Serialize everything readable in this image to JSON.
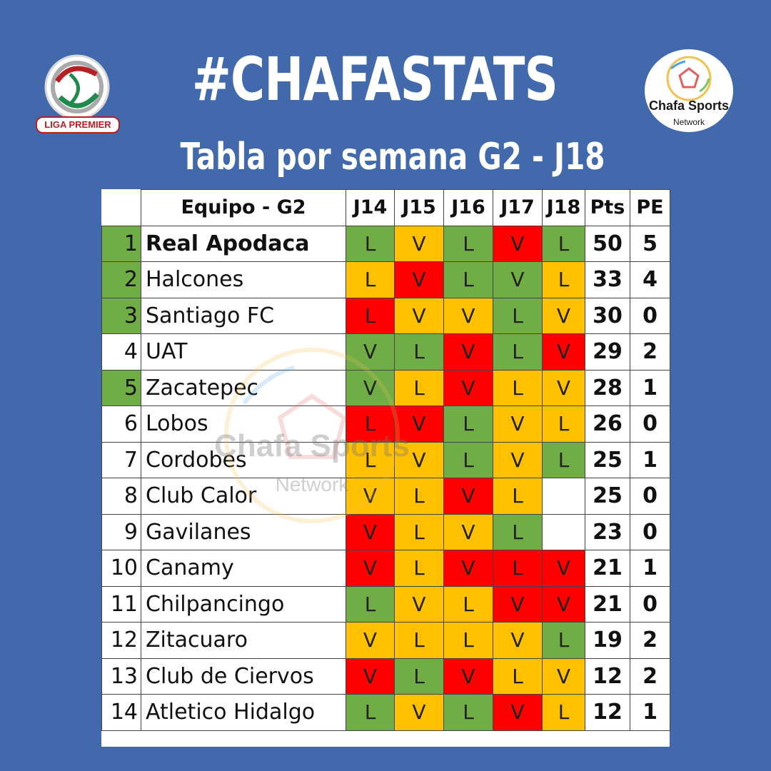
{
  "header": {
    "title": "#CHAFASTATS",
    "subtitle": "Tabla por semana G2 - J18"
  },
  "logo_left": {
    "text": "LIGA PREMIER"
  },
  "logo_right": {
    "brand": "Chafa Sports",
    "sub": "Network"
  },
  "watermark": {
    "brand": "Chafa Sports",
    "sub": "Network"
  },
  "colors": {
    "background": "#4169ab",
    "L_green": "#70ad47",
    "L_yellow": "#ffc000",
    "V_red": "#ff0000",
    "V_green": "#70ad47",
    "qualified": "#70ad47"
  },
  "table": {
    "headers": [
      "Equipo - G2",
      "J14",
      "J15",
      "J16",
      "J17",
      "J18",
      "Pts",
      "PE"
    ],
    "rows": [
      {
        "pos": "1",
        "team": "Real Apodaca",
        "bold": true,
        "qualified": true,
        "results": [
          {
            "v": "L",
            "c": "green"
          },
          {
            "v": "V",
            "c": "yellow"
          },
          {
            "v": "L",
            "c": "green"
          },
          {
            "v": "V",
            "c": "red"
          },
          {
            "v": "L",
            "c": "green"
          }
        ],
        "pts": "50",
        "pe": "5"
      },
      {
        "pos": "2",
        "team": "Halcones",
        "qualified": true,
        "results": [
          {
            "v": "L",
            "c": "yellow"
          },
          {
            "v": "V",
            "c": "red"
          },
          {
            "v": "L",
            "c": "green"
          },
          {
            "v": "V",
            "c": "green"
          },
          {
            "v": "L",
            "c": "yellow"
          }
        ],
        "pts": "33",
        "pe": "4"
      },
      {
        "pos": "3",
        "team": "Santiago FC",
        "qualified": true,
        "results": [
          {
            "v": "L",
            "c": "red"
          },
          {
            "v": "V",
            "c": "yellow"
          },
          {
            "v": "V",
            "c": "yellow"
          },
          {
            "v": "L",
            "c": "green"
          },
          {
            "v": "V",
            "c": "yellow"
          }
        ],
        "pts": "30",
        "pe": "0"
      },
      {
        "pos": "4",
        "team": "UAT",
        "qualified": false,
        "results": [
          {
            "v": "V",
            "c": "green"
          },
          {
            "v": "L",
            "c": "green"
          },
          {
            "v": "V",
            "c": "red"
          },
          {
            "v": "L",
            "c": "green"
          },
          {
            "v": "V",
            "c": "red"
          }
        ],
        "pts": "29",
        "pe": "2"
      },
      {
        "pos": "5",
        "team": "Zacatepec",
        "qualified": true,
        "results": [
          {
            "v": "V",
            "c": "green"
          },
          {
            "v": "L",
            "c": "yellow"
          },
          {
            "v": "V",
            "c": "red"
          },
          {
            "v": "L",
            "c": "yellow"
          },
          {
            "v": "V",
            "c": "yellow"
          }
        ],
        "pts": "28",
        "pe": "1"
      },
      {
        "pos": "6",
        "team": "Lobos",
        "qualified": false,
        "results": [
          {
            "v": "L",
            "c": "red"
          },
          {
            "v": "V",
            "c": "red"
          },
          {
            "v": "L",
            "c": "green"
          },
          {
            "v": "V",
            "c": "yellow"
          },
          {
            "v": "L",
            "c": "yellow"
          }
        ],
        "pts": "26",
        "pe": "0"
      },
      {
        "pos": "7",
        "team": "Cordobes",
        "qualified": false,
        "results": [
          {
            "v": "L",
            "c": "yellow"
          },
          {
            "v": "V",
            "c": "yellow"
          },
          {
            "v": "L",
            "c": "green"
          },
          {
            "v": "V",
            "c": "yellow"
          },
          {
            "v": "L",
            "c": "green"
          }
        ],
        "pts": "25",
        "pe": "1"
      },
      {
        "pos": "8",
        "team": "Club Calor",
        "qualified": false,
        "results": [
          {
            "v": "V",
            "c": "yellow"
          },
          {
            "v": "L",
            "c": "yellow"
          },
          {
            "v": "V",
            "c": "red"
          },
          {
            "v": "L",
            "c": "yellow"
          },
          {
            "v": "",
            "c": "white"
          }
        ],
        "pts": "25",
        "pe": "0"
      },
      {
        "pos": "9",
        "team": "Gavilanes",
        "qualified": false,
        "results": [
          {
            "v": "V",
            "c": "red"
          },
          {
            "v": "L",
            "c": "yellow"
          },
          {
            "v": "V",
            "c": "yellow"
          },
          {
            "v": "L",
            "c": "green"
          },
          {
            "v": "",
            "c": "white"
          }
        ],
        "pts": "23",
        "pe": "0"
      },
      {
        "pos": "10",
        "team": "Canamy",
        "qualified": false,
        "results": [
          {
            "v": "V",
            "c": "red"
          },
          {
            "v": "L",
            "c": "yellow"
          },
          {
            "v": "V",
            "c": "red"
          },
          {
            "v": "L",
            "c": "red"
          },
          {
            "v": "V",
            "c": "red"
          }
        ],
        "pts": "21",
        "pe": "1"
      },
      {
        "pos": "11",
        "team": "Chilpancingo",
        "qualified": false,
        "results": [
          {
            "v": "L",
            "c": "green"
          },
          {
            "v": "V",
            "c": "yellow"
          },
          {
            "v": "L",
            "c": "yellow"
          },
          {
            "v": "V",
            "c": "red"
          },
          {
            "v": "V",
            "c": "red"
          }
        ],
        "pts": "21",
        "pe": "0"
      },
      {
        "pos": "12",
        "team": "Zitacuaro",
        "qualified": false,
        "results": [
          {
            "v": "V",
            "c": "yellow"
          },
          {
            "v": "L",
            "c": "yellow"
          },
          {
            "v": "L",
            "c": "yellow"
          },
          {
            "v": "V",
            "c": "yellow"
          },
          {
            "v": "L",
            "c": "green"
          }
        ],
        "pts": "19",
        "pe": "2"
      },
      {
        "pos": "13",
        "team": "Club de Ciervos",
        "qualified": false,
        "results": [
          {
            "v": "V",
            "c": "red"
          },
          {
            "v": "L",
            "c": "green"
          },
          {
            "v": "V",
            "c": "red"
          },
          {
            "v": "L",
            "c": "yellow"
          },
          {
            "v": "V",
            "c": "yellow"
          }
        ],
        "pts": "12",
        "pe": "2"
      },
      {
        "pos": "14",
        "team": "Atletico Hidalgo",
        "qualified": false,
        "results": [
          {
            "v": "L",
            "c": "green"
          },
          {
            "v": "V",
            "c": "yellow"
          },
          {
            "v": "L",
            "c": "green"
          },
          {
            "v": "V",
            "c": "red"
          },
          {
            "v": "L",
            "c": "yellow"
          }
        ],
        "pts": "12",
        "pe": "1"
      }
    ]
  }
}
